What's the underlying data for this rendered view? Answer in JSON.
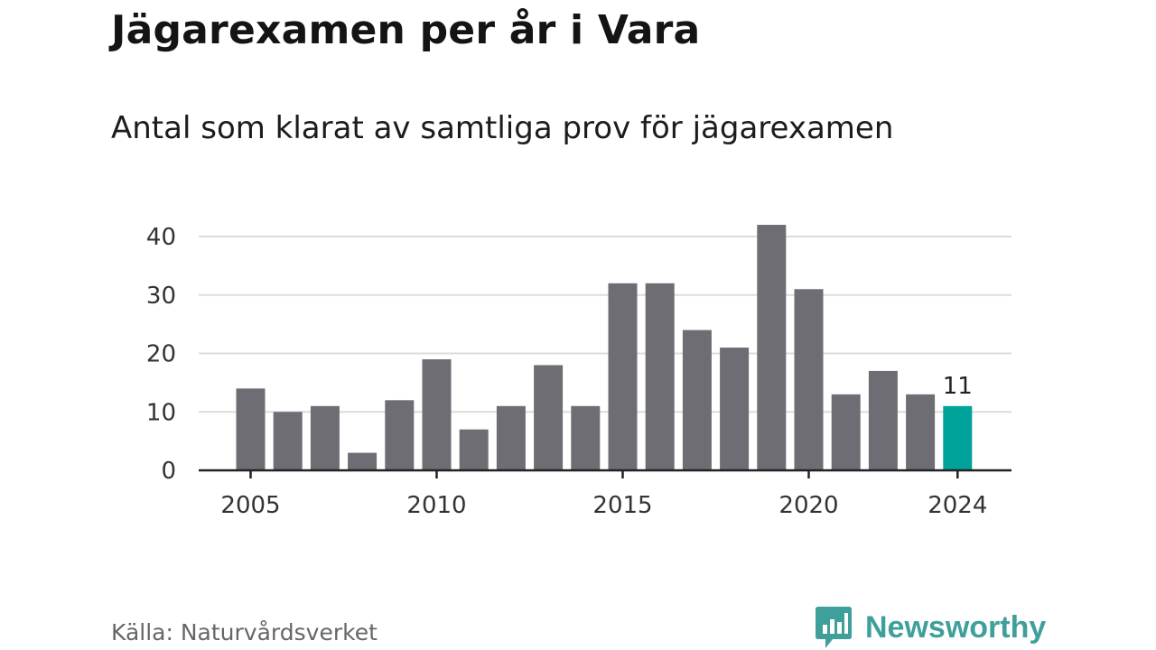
{
  "header": {
    "title": "Jägarexamen per år i Vara",
    "subtitle": "Antal som klarat av samtliga prov för jägarexamen"
  },
  "footer": {
    "source": "Källa: Naturvårdsverket",
    "brand": "Newsworthy",
    "logo_icon": "bar-chart-speech-bubble-icon",
    "brand_color": "#3f9f9a"
  },
  "chart_data": {
    "type": "bar",
    "categories": [
      2005,
      2006,
      2007,
      2008,
      2009,
      2010,
      2011,
      2012,
      2013,
      2014,
      2015,
      2016,
      2017,
      2018,
      2019,
      2020,
      2021,
      2022,
      2023,
      2024
    ],
    "values": [
      14,
      10,
      11,
      3,
      12,
      19,
      7,
      11,
      18,
      11,
      32,
      32,
      24,
      21,
      42,
      31,
      13,
      17,
      13,
      11
    ],
    "x_tick_labels": [
      "2005",
      "2010",
      "2015",
      "2020",
      "2024"
    ],
    "y_ticks": [
      0,
      10,
      20,
      30,
      40
    ],
    "ylim": [
      0,
      42
    ],
    "grid": true,
    "highlight": {
      "category": 2024,
      "label": "11"
    },
    "colors": {
      "bar": "#6e6d74",
      "highlight": "#00a39a",
      "grid": "#dcdcdc",
      "axis": "#222222"
    }
  }
}
